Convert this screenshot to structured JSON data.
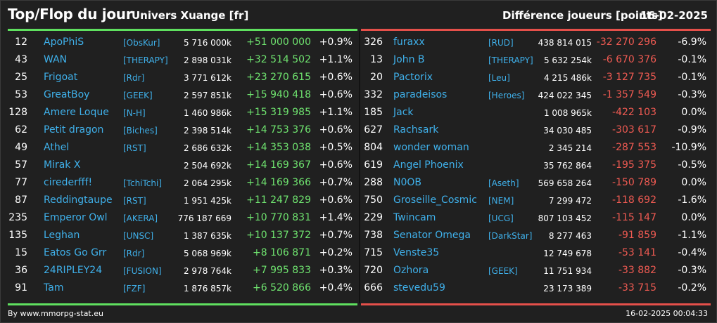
{
  "header": {
    "title": "Top/Flop du jour",
    "universe": "Univers Xuange [fr]",
    "difference_label": "Différence joueurs [points]",
    "date": "16-02-2025"
  },
  "colors": {
    "positive": "#6fe36f",
    "negative": "#ef5a52",
    "player_link": "#3fb0ea",
    "top_bar": "#5fe05f",
    "flop_bar": "#e5504a"
  },
  "top": [
    {
      "rank": "12",
      "name": "ApoPhiS",
      "alliance": "[ObsKur]",
      "total": "5 716 000k",
      "delta": "+51 000 000",
      "pct": "+0.9%"
    },
    {
      "rank": "43",
      "name": "WAN",
      "alliance": "[THERAPY]",
      "total": "2 898 031k",
      "delta": "+32 514 502",
      "pct": "+1.1%"
    },
    {
      "rank": "25",
      "name": "Frigoat",
      "alliance": "[Rdr]",
      "total": "3 771 612k",
      "delta": "+23 270 615",
      "pct": "+0.6%"
    },
    {
      "rank": "53",
      "name": "GreatBoy",
      "alliance": "[GEEK]",
      "total": "2 597 851k",
      "delta": "+15 940 418",
      "pct": "+0.6%"
    },
    {
      "rank": "128",
      "name": "Amere Loque",
      "alliance": "[N-H]",
      "total": "1 460 986k",
      "delta": "+15 319 985",
      "pct": "+1.1%"
    },
    {
      "rank": "62",
      "name": "Petit dragon",
      "alliance": "[Biches]",
      "total": "2 398 514k",
      "delta": "+14 753 376",
      "pct": "+0.6%"
    },
    {
      "rank": "49",
      "name": "Athel",
      "alliance": "[RST]",
      "total": "2 686 632k",
      "delta": "+14 353 038",
      "pct": "+0.5%"
    },
    {
      "rank": "57",
      "name": "Mirak X",
      "alliance": "",
      "total": "2 504 692k",
      "delta": "+14 169 367",
      "pct": "+0.6%"
    },
    {
      "rank": "77",
      "name": "cirederfff!",
      "alliance": "[TchiTchi]",
      "total": "2 064 295k",
      "delta": "+14 169 366",
      "pct": "+0.7%"
    },
    {
      "rank": "87",
      "name": "Reddingtaupe",
      "alliance": "[RST]",
      "total": "1 951 425k",
      "delta": "+11 247 829",
      "pct": "+0.6%"
    },
    {
      "rank": "235",
      "name": "Emperor Owl",
      "alliance": "[AKERA]",
      "total": "776 187 669",
      "delta": "+10 770 831",
      "pct": "+1.4%"
    },
    {
      "rank": "135",
      "name": "Leghan",
      "alliance": "[UNSC]",
      "total": "1 387 635k",
      "delta": "+10 137 372",
      "pct": "+0.7%"
    },
    {
      "rank": "15",
      "name": "Eatos Go Grr",
      "alliance": "[Rdr]",
      "total": "5 068 969k",
      "delta": "+8 106 871",
      "pct": "+0.2%"
    },
    {
      "rank": "36",
      "name": "24RIPLEY24",
      "alliance": "[FUSION]",
      "total": "2 978 764k",
      "delta": "+7 995 833",
      "pct": "+0.3%"
    },
    {
      "rank": "91",
      "name": "Tam",
      "alliance": "[FZF]",
      "total": "1 876 857k",
      "delta": "+6 520 866",
      "pct": "+0.4%"
    }
  ],
  "flop": [
    {
      "rank": "326",
      "name": "furaxx",
      "alliance": "[RUD]",
      "total": "438 814 015",
      "delta": "-32 270 296",
      "pct": "-6.9%"
    },
    {
      "rank": "13",
      "name": "John B",
      "alliance": "[THERAPY]",
      "total": "5 632 254k",
      "delta": "-6 670 376",
      "pct": "-0.1%"
    },
    {
      "rank": "20",
      "name": "Pactorix",
      "alliance": "[Leu]",
      "total": "4 215 486k",
      "delta": "-3 127 735",
      "pct": "-0.1%"
    },
    {
      "rank": "332",
      "name": "paradeisos",
      "alliance": "[Heroes]",
      "total": "424 022 345",
      "delta": "-1 357 549",
      "pct": "-0.3%"
    },
    {
      "rank": "185",
      "name": "Jack",
      "alliance": "",
      "total": "1 008 965k",
      "delta": "-422 103",
      "pct": "0.0%"
    },
    {
      "rank": "627",
      "name": "Rachsark",
      "alliance": "",
      "total": "34 030 485",
      "delta": "-303 617",
      "pct": "-0.9%"
    },
    {
      "rank": "804",
      "name": "wonder woman",
      "alliance": "",
      "total": "2 345 214",
      "delta": "-287 553",
      "pct": "-10.9%"
    },
    {
      "rank": "619",
      "name": "Angel Phoenix",
      "alliance": "",
      "total": "35 762 864",
      "delta": "-195 375",
      "pct": "-0.5%"
    },
    {
      "rank": "288",
      "name": "N0OB",
      "alliance": "[Aseth]",
      "total": "569 658 264",
      "delta": "-150 789",
      "pct": "0.0%"
    },
    {
      "rank": "750",
      "name": "Groseille_Cosmic",
      "alliance": "[NEM]",
      "total": "7 299 472",
      "delta": "-118 692",
      "pct": "-1.6%"
    },
    {
      "rank": "229",
      "name": "Twincam",
      "alliance": "[UCG]",
      "total": "807 103 452",
      "delta": "-115 147",
      "pct": "0.0%"
    },
    {
      "rank": "738",
      "name": "Senator Omega",
      "alliance": "[DarkStar]",
      "total": "8 277 463",
      "delta": "-91 859",
      "pct": "-1.1%"
    },
    {
      "rank": "715",
      "name": "Venste35",
      "alliance": "",
      "total": "12 749 678",
      "delta": "-53 141",
      "pct": "-0.4%"
    },
    {
      "rank": "720",
      "name": "Ozhora",
      "alliance": "[GEEK]",
      "total": "11 751 934",
      "delta": "-33 882",
      "pct": "-0.3%"
    },
    {
      "rank": "666",
      "name": "stevedu59",
      "alliance": "",
      "total": "23 173 389",
      "delta": "-33 715",
      "pct": "-0.2%"
    }
  ],
  "footer": {
    "credit": "By www.mmorpg-stat.eu",
    "timestamp": "16-02-2025 00:04:33"
  }
}
